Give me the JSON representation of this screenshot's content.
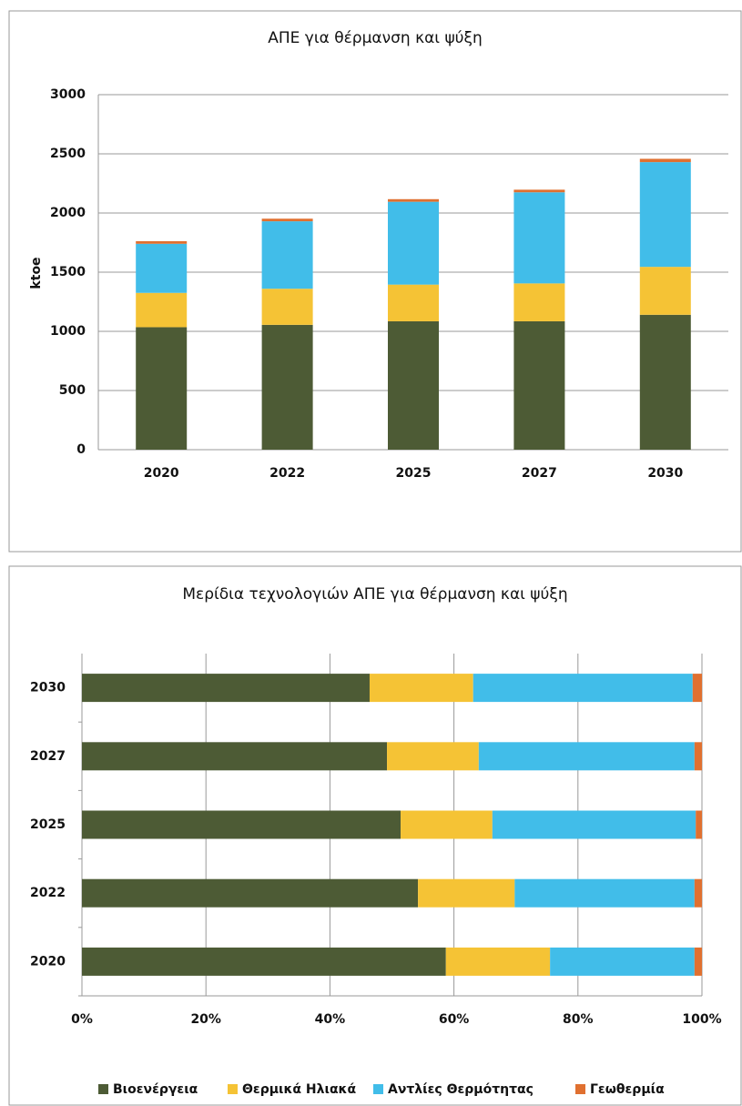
{
  "chart_data": [
    {
      "type": "stacked_bar",
      "title": "ΑΠΕ για θέρμανση και ψύξη",
      "y_label": "ktoe",
      "categories": [
        "2020",
        "2022",
        "2025",
        "2027",
        "2030"
      ],
      "series": [
        {
          "color": "#4d5b35",
          "values": [
            1035,
            1055,
            1085,
            1085,
            1140
          ]
        },
        {
          "color": "#f5c335",
          "values": [
            290,
            305,
            310,
            320,
            405
          ]
        },
        {
          "color": "#41bde9",
          "values": [
            415,
            570,
            700,
            770,
            885
          ]
        },
        {
          "color": "#e07030",
          "values": [
            22,
            22,
            22,
            22,
            28
          ]
        }
      ],
      "ylim": [
        0,
        3000
      ],
      "yticks": [
        0,
        500,
        1000,
        1500,
        2000,
        2500,
        3000
      ],
      "grid": true
    },
    {
      "type": "stacked_barh_percent",
      "title": "Μερίδια τεχνολογιών ΑΠΕ για θέρμανση και ψύξη",
      "categories": [
        "2020",
        "2022",
        "2025",
        "2027",
        "2030"
      ],
      "series": [
        {
          "name": "Βιοενέργεια",
          "color": "#4d5b35",
          "values": [
            58.7,
            54.2,
            51.4,
            49.2,
            46.4
          ]
        },
        {
          "name": "Θερμικά Ηλιακά",
          "color": "#f5c335",
          "values": [
            16.8,
            15.6,
            14.8,
            14.8,
            16.7
          ]
        },
        {
          "name": "Αντλίες Θερμότητας",
          "color": "#41bde9",
          "values": [
            23.3,
            29.0,
            32.8,
            34.8,
            35.4
          ]
        },
        {
          "name": "Γεωθερμία",
          "color": "#e07030",
          "values": [
            1.2,
            1.2,
            1.0,
            1.2,
            1.5
          ]
        }
      ],
      "xlim": [
        0,
        100
      ],
      "xticks": [
        {
          "value": 0,
          "label": "0%"
        },
        {
          "value": 20,
          "label": "20%"
        },
        {
          "value": 40,
          "label": "40%"
        },
        {
          "value": 60,
          "label": "60%"
        },
        {
          "value": 80,
          "label": "80%"
        },
        {
          "value": 100,
          "label": "100%"
        }
      ],
      "grid": true,
      "legend": "bottom"
    }
  ]
}
